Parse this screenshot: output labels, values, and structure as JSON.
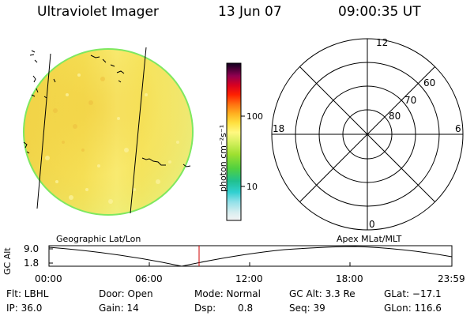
{
  "header": {
    "instrument": "Ultraviolet Imager",
    "date": "13 Jun 07",
    "time": "09:00:35 UT"
  },
  "colorbar": {
    "unit": "photon cm⁻²s⁻¹",
    "ticks": [
      "100",
      "10"
    ]
  },
  "polar_plot": {
    "mlt_labels": [
      "12",
      "18",
      "6",
      "0"
    ],
    "mlat_labels": [
      "60",
      "70",
      "80"
    ]
  },
  "panel_labels": {
    "left": "Geographic Lat/Lon",
    "right": "Apex MLat/MLT"
  },
  "orbit": {
    "ylabel": "GC Alt",
    "y_ticks": [
      "9.0",
      "1.8"
    ],
    "x_ticks": [
      "00:00",
      "06:00",
      "12:00",
      "18:00",
      "23:59"
    ]
  },
  "info": {
    "flt": "Flt: LBHL",
    "door": "Door: Open",
    "mode": "Mode: Normal",
    "gc_alt": "GC Alt: 3.3 Re",
    "glat": "GLat: −17.1",
    "ip": "IP: 36.0",
    "gain": "Gain: 14",
    "dsp_label": "Dsp:",
    "dsp_value": "0.8",
    "seq": "Seq: 39",
    "glon": "GLon: 116.6"
  }
}
